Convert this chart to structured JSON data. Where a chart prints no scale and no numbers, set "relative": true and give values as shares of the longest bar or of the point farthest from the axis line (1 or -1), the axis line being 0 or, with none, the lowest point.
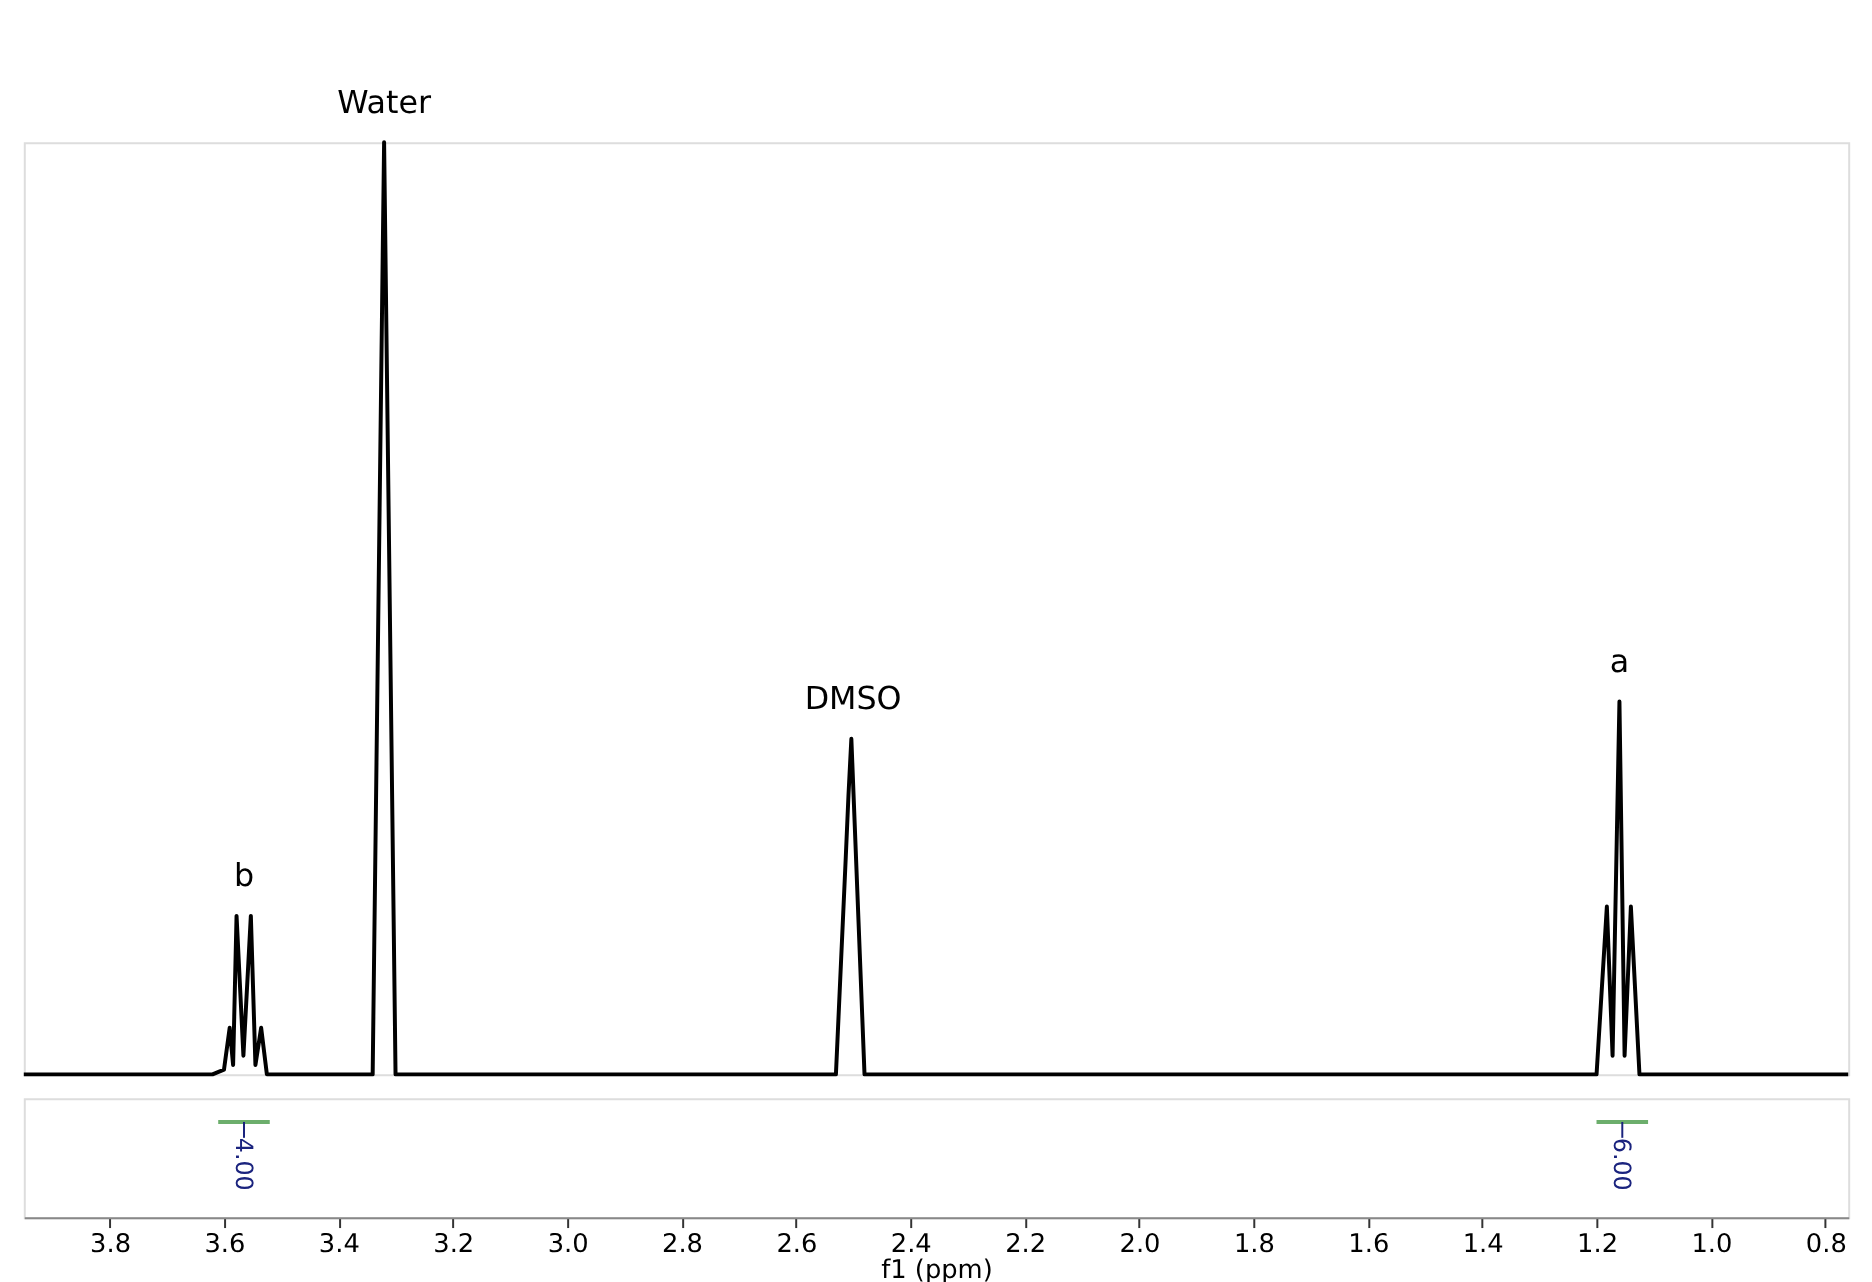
{
  "chart_data": {
    "type": "line",
    "relative": true,
    "xlabel": "f1 (ppm)",
    "xlim": [
      3.95,
      0.76
    ],
    "xticks": [
      3.8,
      3.6,
      3.4,
      3.2,
      {
        "value": 3.0,
        "label": "3.0"
      },
      2.8,
      2.6,
      2.4,
      2.2,
      {
        "value": 2.0,
        "label": "2.0"
      },
      1.8,
      1.6,
      1.4,
      1.2,
      {
        "value": 1.0,
        "label": "1.0"
      },
      0.8
    ],
    "series": [
      {
        "color": "#000000",
        "x": [
          3.95,
          3.62,
          3.6,
          3.59,
          3.584,
          3.578,
          3.566,
          3.553,
          3.545,
          3.535,
          3.525,
          3.34,
          3.32,
          3.3,
          2.53,
          2.513,
          2.508,
          2.503,
          2.48,
          1.2,
          1.182,
          1.172,
          1.16,
          1.151,
          1.14,
          1.125,
          0.76
        ],
        "values": [
          0,
          0,
          0.005,
          0.05,
          0.01,
          0.17,
          0.02,
          0.17,
          0.01,
          0.05,
          0,
          0,
          1.0,
          0,
          0,
          0.23,
          0.3,
          0.36,
          0,
          0,
          0.18,
          0.02,
          0.4,
          0.02,
          0.18,
          0,
          0
        ]
      }
    ],
    "annotations": [
      {
        "text": "Water",
        "x": 3.32,
        "y": 1.0
      },
      {
        "text": "DMSO",
        "x": 2.5,
        "y": 0.36
      },
      {
        "text": "b",
        "x": 3.565,
        "y": 0.17
      },
      {
        "text": "a",
        "x": 1.16,
        "y": 0.4
      },
      {
        "text": "4.00",
        "x": 3.565
      },
      {
        "text": "6.00",
        "x": 1.155
      }
    ],
    "grid": false,
    "legend": false,
    "marker": "none",
    "line_style": "solid"
  }
}
